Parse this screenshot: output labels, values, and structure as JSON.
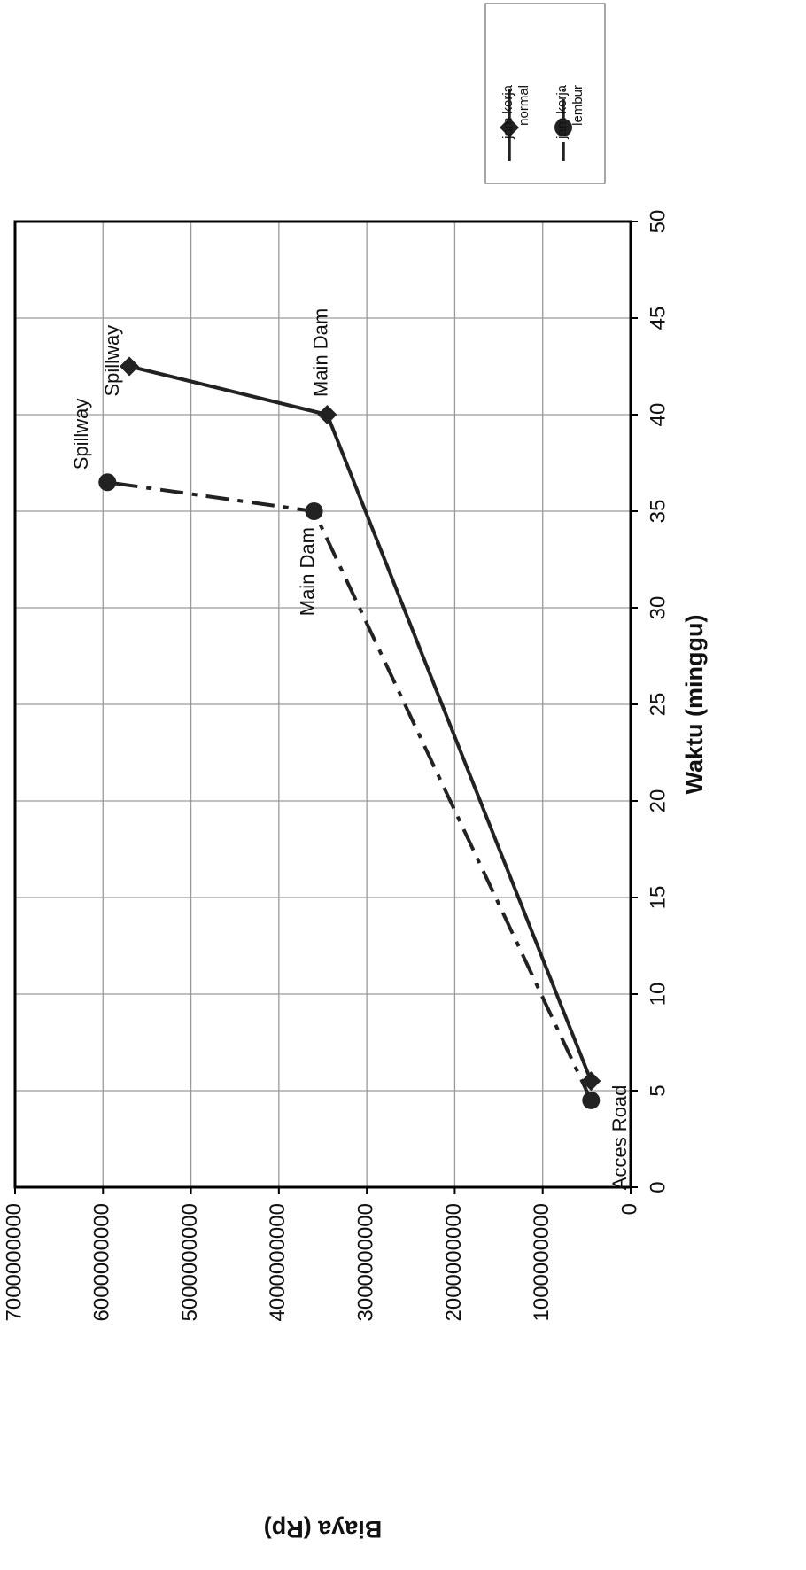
{
  "chart_data": {
    "type": "line",
    "title": "",
    "xlabel": "Waktu (minggu)",
    "ylabel": "Biaya (Rp)",
    "xlim": [
      0,
      50
    ],
    "ylim": [
      0,
      7000000000
    ],
    "xticks": [
      "0",
      "5",
      "10",
      "15",
      "20",
      "25",
      "30",
      "35",
      "40",
      "45",
      "50"
    ],
    "yticks": [
      "0",
      "1000000000",
      "2000000000",
      "3000000000",
      "4000000000",
      "5000000000",
      "6000000000",
      "7000000000"
    ],
    "grid": true,
    "legend_position": "top-right",
    "orientation": "rotated-90-clockwise",
    "series": [
      {
        "name": "jam kerja normal",
        "line_style": "solid",
        "marker": "diamond",
        "points": [
          {
            "x": 5.5,
            "y": 450000000,
            "label": ""
          },
          {
            "x": 40,
            "y": 3450000000,
            "label": "Main Dam"
          },
          {
            "x": 42.5,
            "y": 5700000000,
            "label": "Spillway"
          }
        ]
      },
      {
        "name": "jam kerja lembur",
        "line_style": "dashed",
        "marker": "circle",
        "points": [
          {
            "x": 4.5,
            "y": 450000000,
            "label": "Acces Road"
          },
          {
            "x": 35,
            "y": 3600000000,
            "label": "Main Dam"
          },
          {
            "x": 36.5,
            "y": 5950000000,
            "label": "Spillway"
          }
        ]
      }
    ],
    "colors": {
      "line": "#222222",
      "grid": "#9a9a9a"
    }
  }
}
